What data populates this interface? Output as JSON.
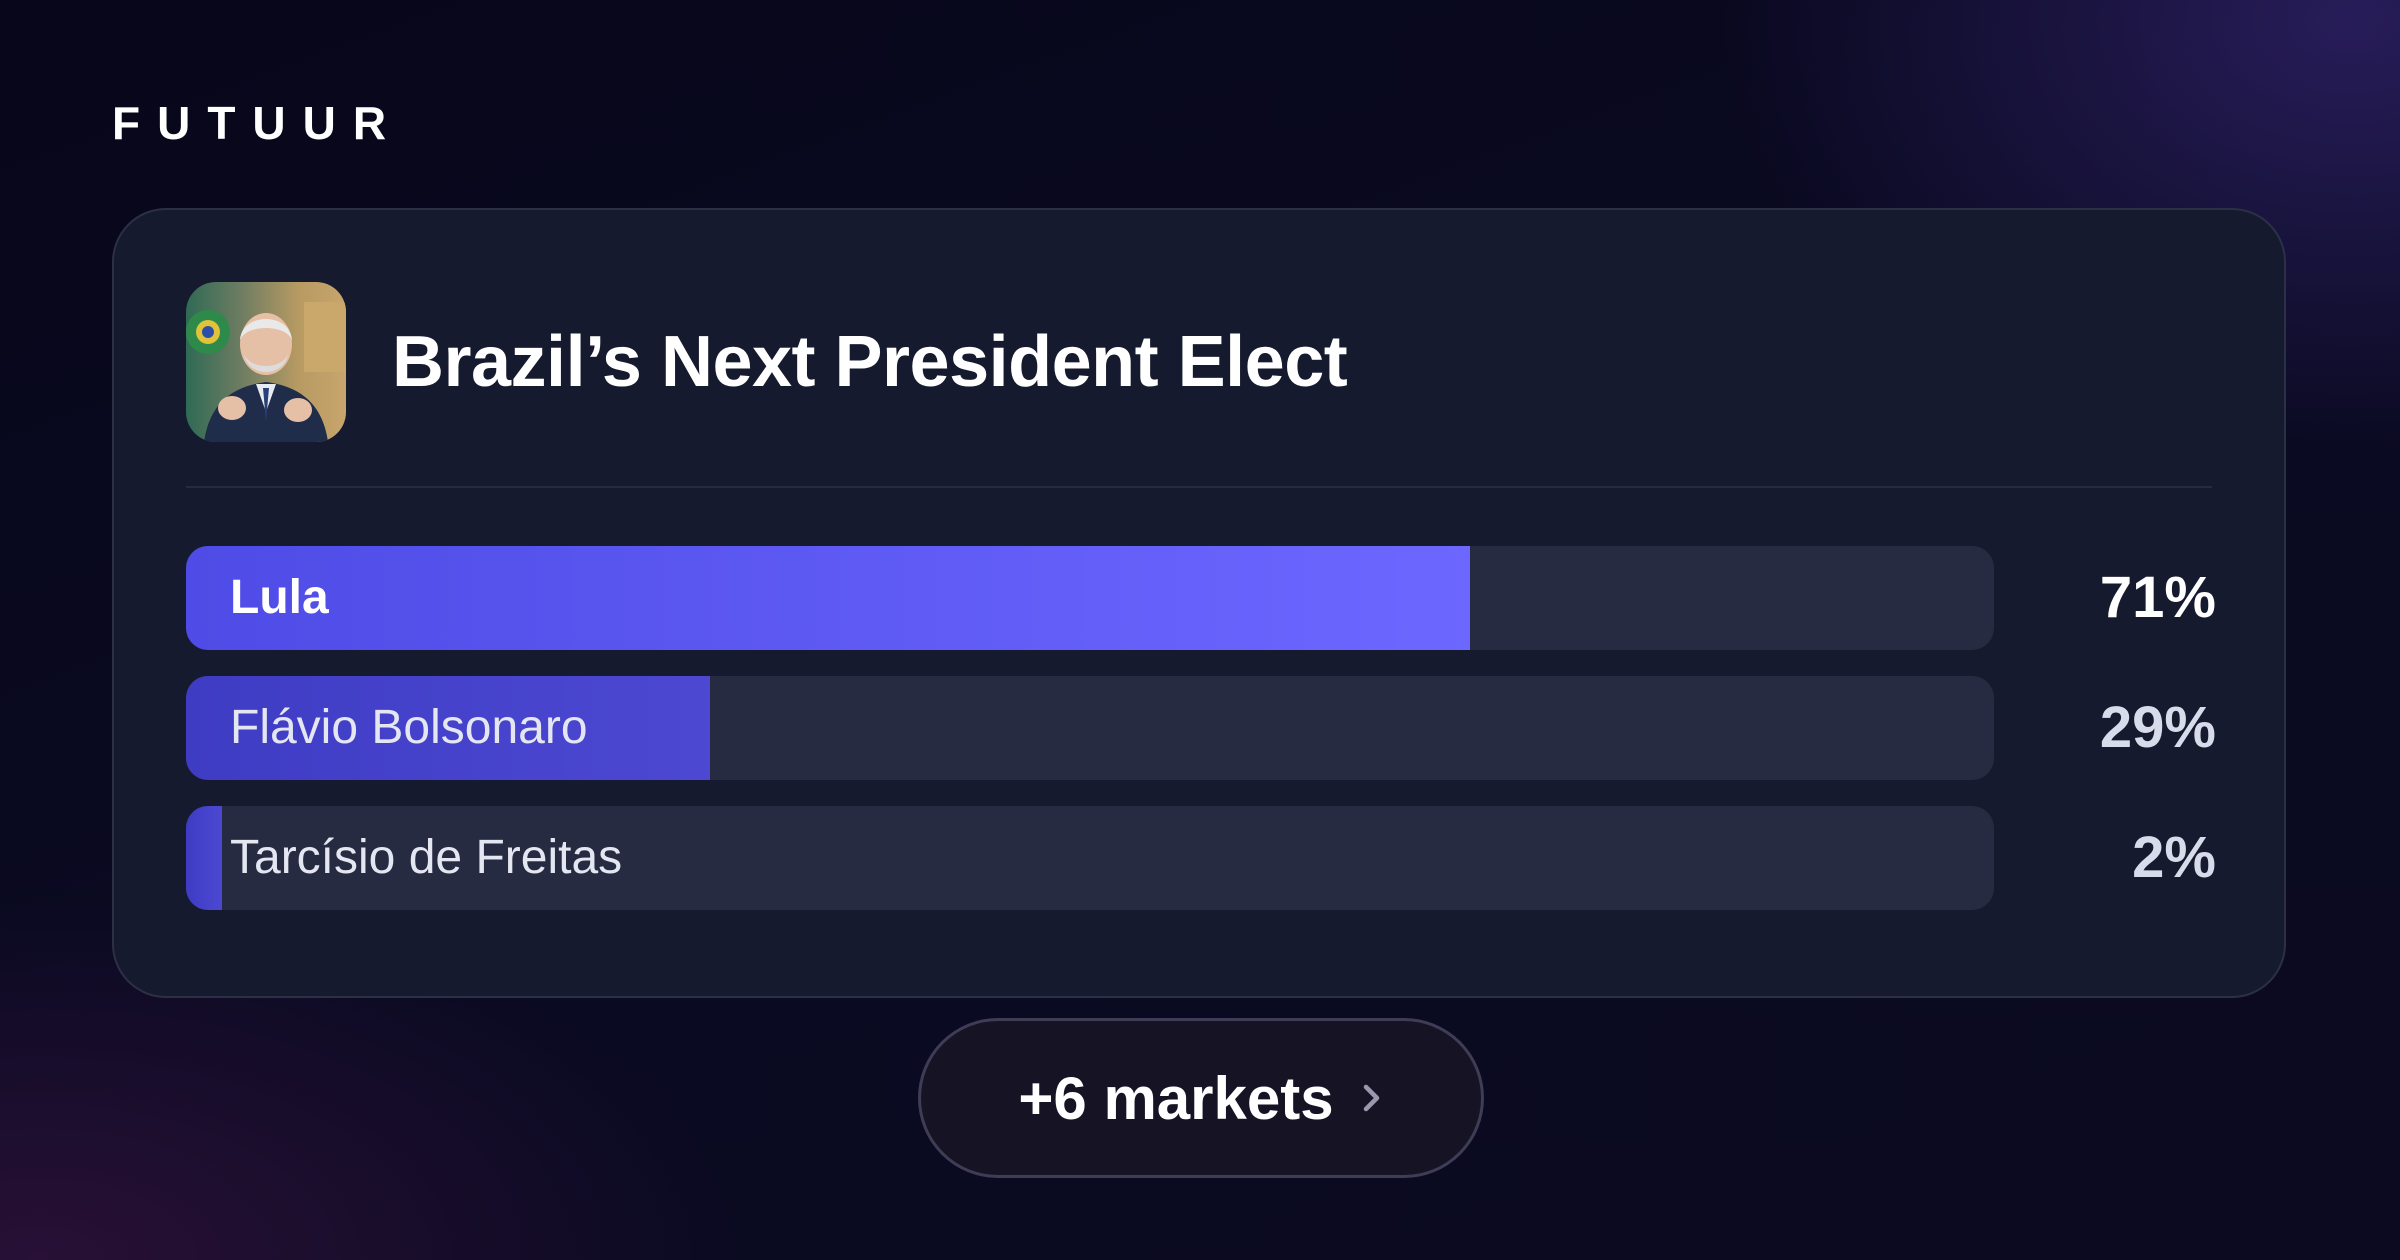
{
  "brand": {
    "logo_text": "FUTUUR"
  },
  "market": {
    "title": "Brazil’s Next President Elect",
    "image_icon": "portrait-photo",
    "outcomes": [
      {
        "name": "Lula",
        "percent_label": "71%",
        "probability": 0.71,
        "leader": true
      },
      {
        "name": "Flávio Bolsonaro",
        "percent_label": "29%",
        "probability": 0.29,
        "leader": false
      },
      {
        "name": "Tarcísio de Freitas",
        "percent_label": "2%",
        "probability": 0.02,
        "leader": false
      }
    ]
  },
  "more_markets": {
    "label": "+6 markets",
    "icon": "chevron-right-icon"
  },
  "colors": {
    "accent": "#5b57f0",
    "bar_track": "#272b41",
    "card_background": "#161a2e"
  }
}
